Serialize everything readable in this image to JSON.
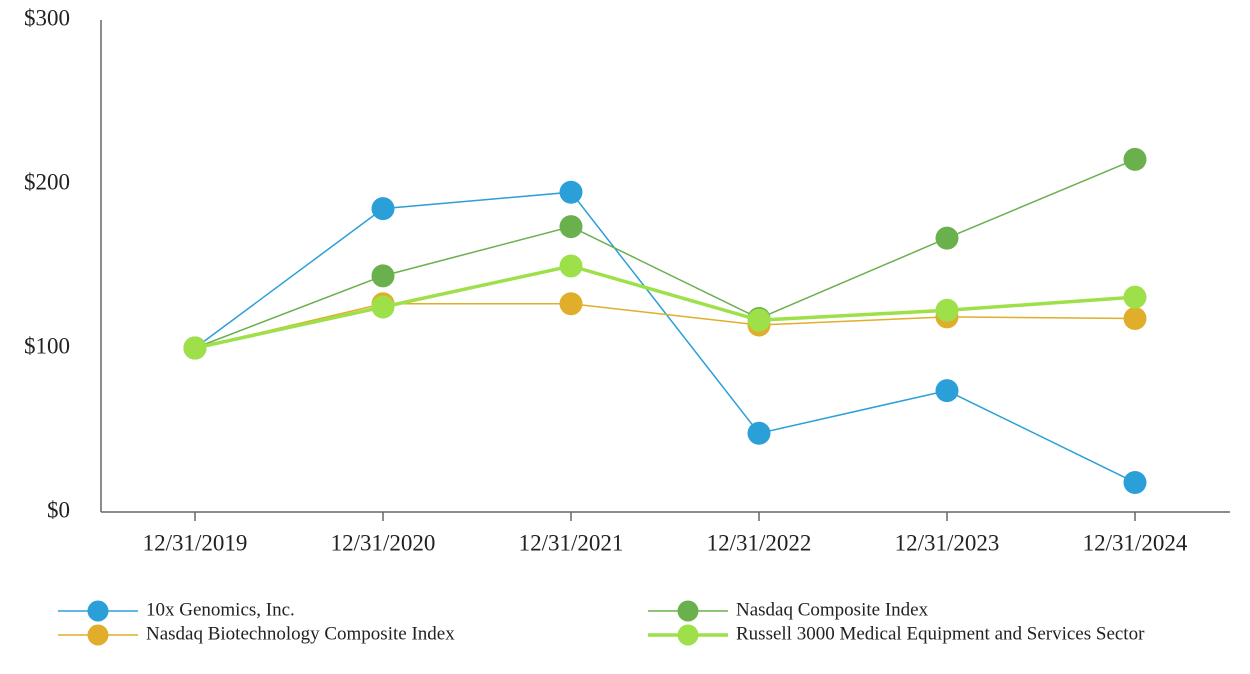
{
  "chart_data": {
    "type": "line",
    "categories": [
      "12/31/2019",
      "12/31/2020",
      "12/31/2021",
      "12/31/2022",
      "12/31/2023",
      "12/31/2024"
    ],
    "series": [
      {
        "name": "10x Genomics, Inc.",
        "color": "#2a9fd8",
        "values": [
          100,
          185,
          195,
          48,
          74,
          18
        ]
      },
      {
        "name": "Nasdaq Composite Index",
        "color": "#6ab04c",
        "values": [
          100,
          144,
          174,
          118,
          167,
          215
        ]
      },
      {
        "name": "Nasdaq Biotechnology Composite Index",
        "color": "#e0ae2a",
        "values": [
          100,
          127,
          127,
          114,
          119,
          118
        ]
      },
      {
        "name": "Russell 3000 Medical Equipment and Services Sector",
        "color": "#9ee04a",
        "values": [
          100,
          125,
          150,
          117,
          123,
          131
        ]
      }
    ],
    "ylim": [
      0,
      300
    ],
    "yticks": [
      {
        "value": 0,
        "label": "$0"
      },
      {
        "value": 100,
        "label": "$100"
      },
      {
        "value": 200,
        "label": "$200"
      },
      {
        "value": 300,
        "label": "$300"
      }
    ],
    "grid": false
  }
}
